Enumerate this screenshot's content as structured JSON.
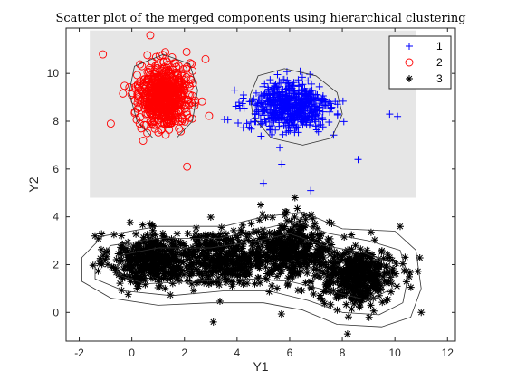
{
  "chart_data": {
    "type": "scatter",
    "title": "Scatter plot of the merged components using hierarchical clustering",
    "xlabel": "Y1",
    "ylabel": "Y2",
    "xlim": [
      -2.5,
      12.3
    ],
    "ylim": [
      -1.2,
      11.9
    ],
    "xticks": [
      -2,
      0,
      2,
      4,
      6,
      8,
      10,
      12
    ],
    "yticks": [
      0,
      2,
      4,
      6,
      8,
      10
    ],
    "grid": false,
    "legend_position": "top-right",
    "shaded_region": {
      "x": [
        -1.6,
        10.8
      ],
      "y": [
        4.8,
        11.8
      ],
      "color": "#e6e6e6"
    },
    "colors": {
      "1": "#0000ff",
      "2": "#ff0000",
      "3": "#000000",
      "contour": "#333333"
    },
    "series": [
      {
        "name": "1",
        "marker": "plus",
        "color": "#0000ff",
        "clusters": [
          {
            "center": [
              6.0,
              8.6
            ],
            "spread": [
              1.25,
              0.85
            ],
            "count": 600
          }
        ],
        "outliers": [
          [
            9.8,
            8.3
          ],
          [
            10.1,
            8.2
          ],
          [
            5.0,
            5.4
          ],
          [
            5.7,
            6.2
          ],
          [
            8.6,
            6.4
          ],
          [
            6.8,
            5.1
          ]
        ]
      },
      {
        "name": "2",
        "marker": "circle",
        "color": "#ff0000",
        "clusters": [
          {
            "center": [
              1.2,
              9.1
            ],
            "spread": [
              0.75,
              1.05
            ],
            "count": 650
          }
        ],
        "outliers": [
          [
            -1.1,
            10.8
          ],
          [
            2.1,
            6.1
          ],
          [
            2.8,
            10.6
          ],
          [
            -0.8,
            7.9
          ],
          [
            0.7,
            11.6
          ]
        ]
      },
      {
        "name": "3",
        "marker": "asterisk",
        "color": "#000000",
        "clusters": [
          {
            "center": [
              0.8,
              2.2
            ],
            "spread": [
              1.3,
              0.9
            ],
            "count": 450
          },
          {
            "center": [
              3.5,
              2.3
            ],
            "spread": [
              1.2,
              0.9
            ],
            "count": 350
          },
          {
            "center": [
              6.0,
              2.6
            ],
            "spread": [
              1.3,
              1.0
            ],
            "count": 450
          },
          {
            "center": [
              8.6,
              1.5
            ],
            "spread": [
              1.2,
              0.9
            ],
            "count": 450
          }
        ],
        "outliers": [
          [
            11.0,
            0.0
          ],
          [
            -1.4,
            3.2
          ],
          [
            4.9,
            4.5
          ],
          [
            6.2,
            4.8
          ],
          [
            8.2,
            -0.9
          ],
          [
            10.2,
            3.6
          ],
          [
            3.1,
            -0.4
          ]
        ]
      }
    ],
    "contours": [
      [
        [
          -1.9,
          1.3
        ],
        [
          -0.8,
          0.6
        ],
        [
          1.0,
          0.3
        ],
        [
          3.0,
          0.4
        ],
        [
          5.0,
          0.4
        ],
        [
          6.5,
          0.1
        ],
        [
          7.8,
          -0.5
        ],
        [
          9.5,
          -0.6
        ],
        [
          10.6,
          -0.2
        ],
        [
          11.0,
          1.0
        ],
        [
          10.8,
          2.6
        ],
        [
          10.0,
          3.4
        ],
        [
          8.0,
          3.5
        ],
        [
          6.5,
          4.2
        ],
        [
          5.0,
          4.0
        ],
        [
          3.5,
          3.6
        ],
        [
          1.0,
          3.6
        ],
        [
          -1.1,
          3.2
        ],
        [
          -1.9,
          2.3
        ]
      ],
      [
        [
          -1.4,
          1.4
        ],
        [
          -0.3,
          0.9
        ],
        [
          1.5,
          0.7
        ],
        [
          3.5,
          0.9
        ],
        [
          5.2,
          0.9
        ],
        [
          6.7,
          0.5
        ],
        [
          8.0,
          0.0
        ],
        [
          9.4,
          -0.1
        ],
        [
          10.3,
          0.4
        ],
        [
          10.5,
          1.5
        ],
        [
          10.2,
          2.6
        ],
        [
          9.0,
          3.0
        ],
        [
          7.5,
          3.3
        ],
        [
          6.2,
          3.8
        ],
        [
          5.0,
          3.5
        ],
        [
          3.3,
          3.1
        ],
        [
          1.0,
          3.1
        ],
        [
          -0.8,
          2.8
        ],
        [
          -1.4,
          2.1
        ]
      ],
      [
        [
          -0.6,
          1.6
        ],
        [
          0.5,
          1.2
        ],
        [
          2.5,
          1.3
        ],
        [
          4.5,
          1.4
        ],
        [
          6.0,
          1.3
        ],
        [
          7.5,
          0.9
        ],
        [
          9.0,
          0.5
        ],
        [
          9.9,
          1.0
        ],
        [
          9.8,
          2.1
        ],
        [
          8.8,
          2.5
        ],
        [
          7.3,
          2.8
        ],
        [
          6.0,
          3.3
        ],
        [
          4.8,
          3.0
        ],
        [
          3.0,
          2.7
        ],
        [
          1.0,
          2.7
        ],
        [
          -0.4,
          2.4
        ]
      ],
      [
        [
          4.8,
          9.9
        ],
        [
          5.8,
          10.2
        ],
        [
          7.0,
          9.9
        ],
        [
          7.8,
          9.2
        ],
        [
          8.0,
          8.3
        ],
        [
          7.6,
          7.3
        ],
        [
          6.5,
          7.0
        ],
        [
          5.3,
          7.3
        ],
        [
          4.6,
          8.2
        ],
        [
          4.5,
          9.1
        ]
      ],
      [
        [
          0.1,
          10.3
        ],
        [
          1.2,
          10.8
        ],
        [
          2.2,
          10.4
        ],
        [
          2.5,
          9.3
        ],
        [
          2.3,
          8.0
        ],
        [
          1.7,
          7.3
        ],
        [
          0.8,
          7.3
        ],
        [
          0.2,
          8.0
        ],
        [
          -0.1,
          9.2
        ]
      ]
    ]
  }
}
